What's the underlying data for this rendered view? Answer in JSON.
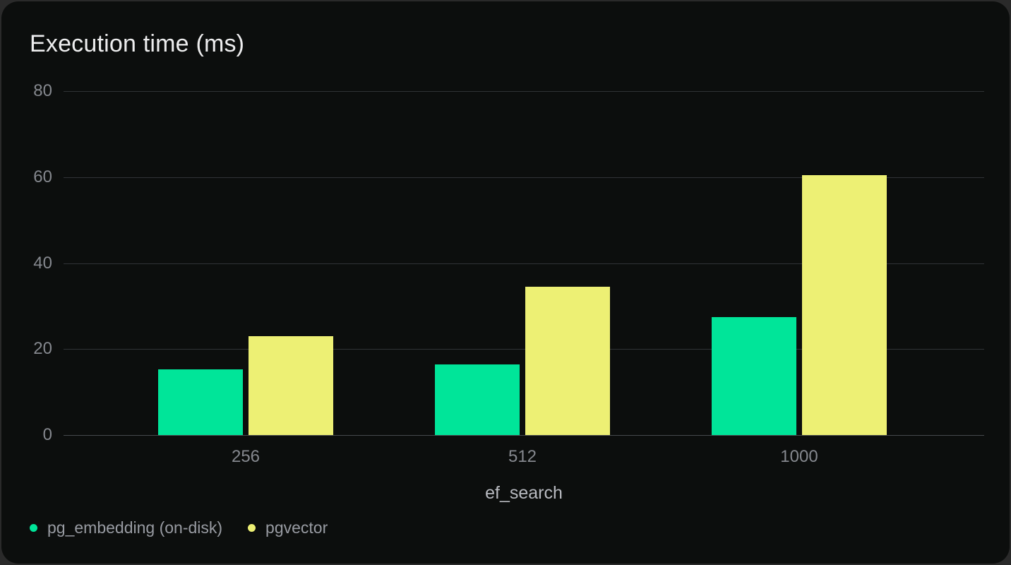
{
  "chart_data": {
    "type": "bar",
    "title": "Execution time (ms)",
    "xlabel": "ef_search",
    "ylabel": "",
    "categories": [
      "256",
      "512",
      "1000"
    ],
    "series": [
      {
        "name": "pg_embedding (on-disk)",
        "color": "#00e599",
        "values": [
          15.2,
          16.5,
          27.5
        ]
      },
      {
        "name": "pgvector",
        "color": "#edf074",
        "values": [
          23.0,
          34.5,
          60.5
        ]
      }
    ],
    "y_ticks": [
      0,
      20,
      40,
      60,
      80
    ],
    "ylim": [
      0,
      80
    ],
    "grid": true,
    "legend_position": "bottom-left"
  },
  "colors": {
    "page_background": "#2a2a2a",
    "card_background": "#0c0e0d",
    "title_text": "#ededee",
    "tick_text": "#85888e",
    "axis_label_text": "#b8bac0",
    "legend_text": "#989ba2",
    "gridline": "#303336",
    "zero_line": "#46494d"
  }
}
